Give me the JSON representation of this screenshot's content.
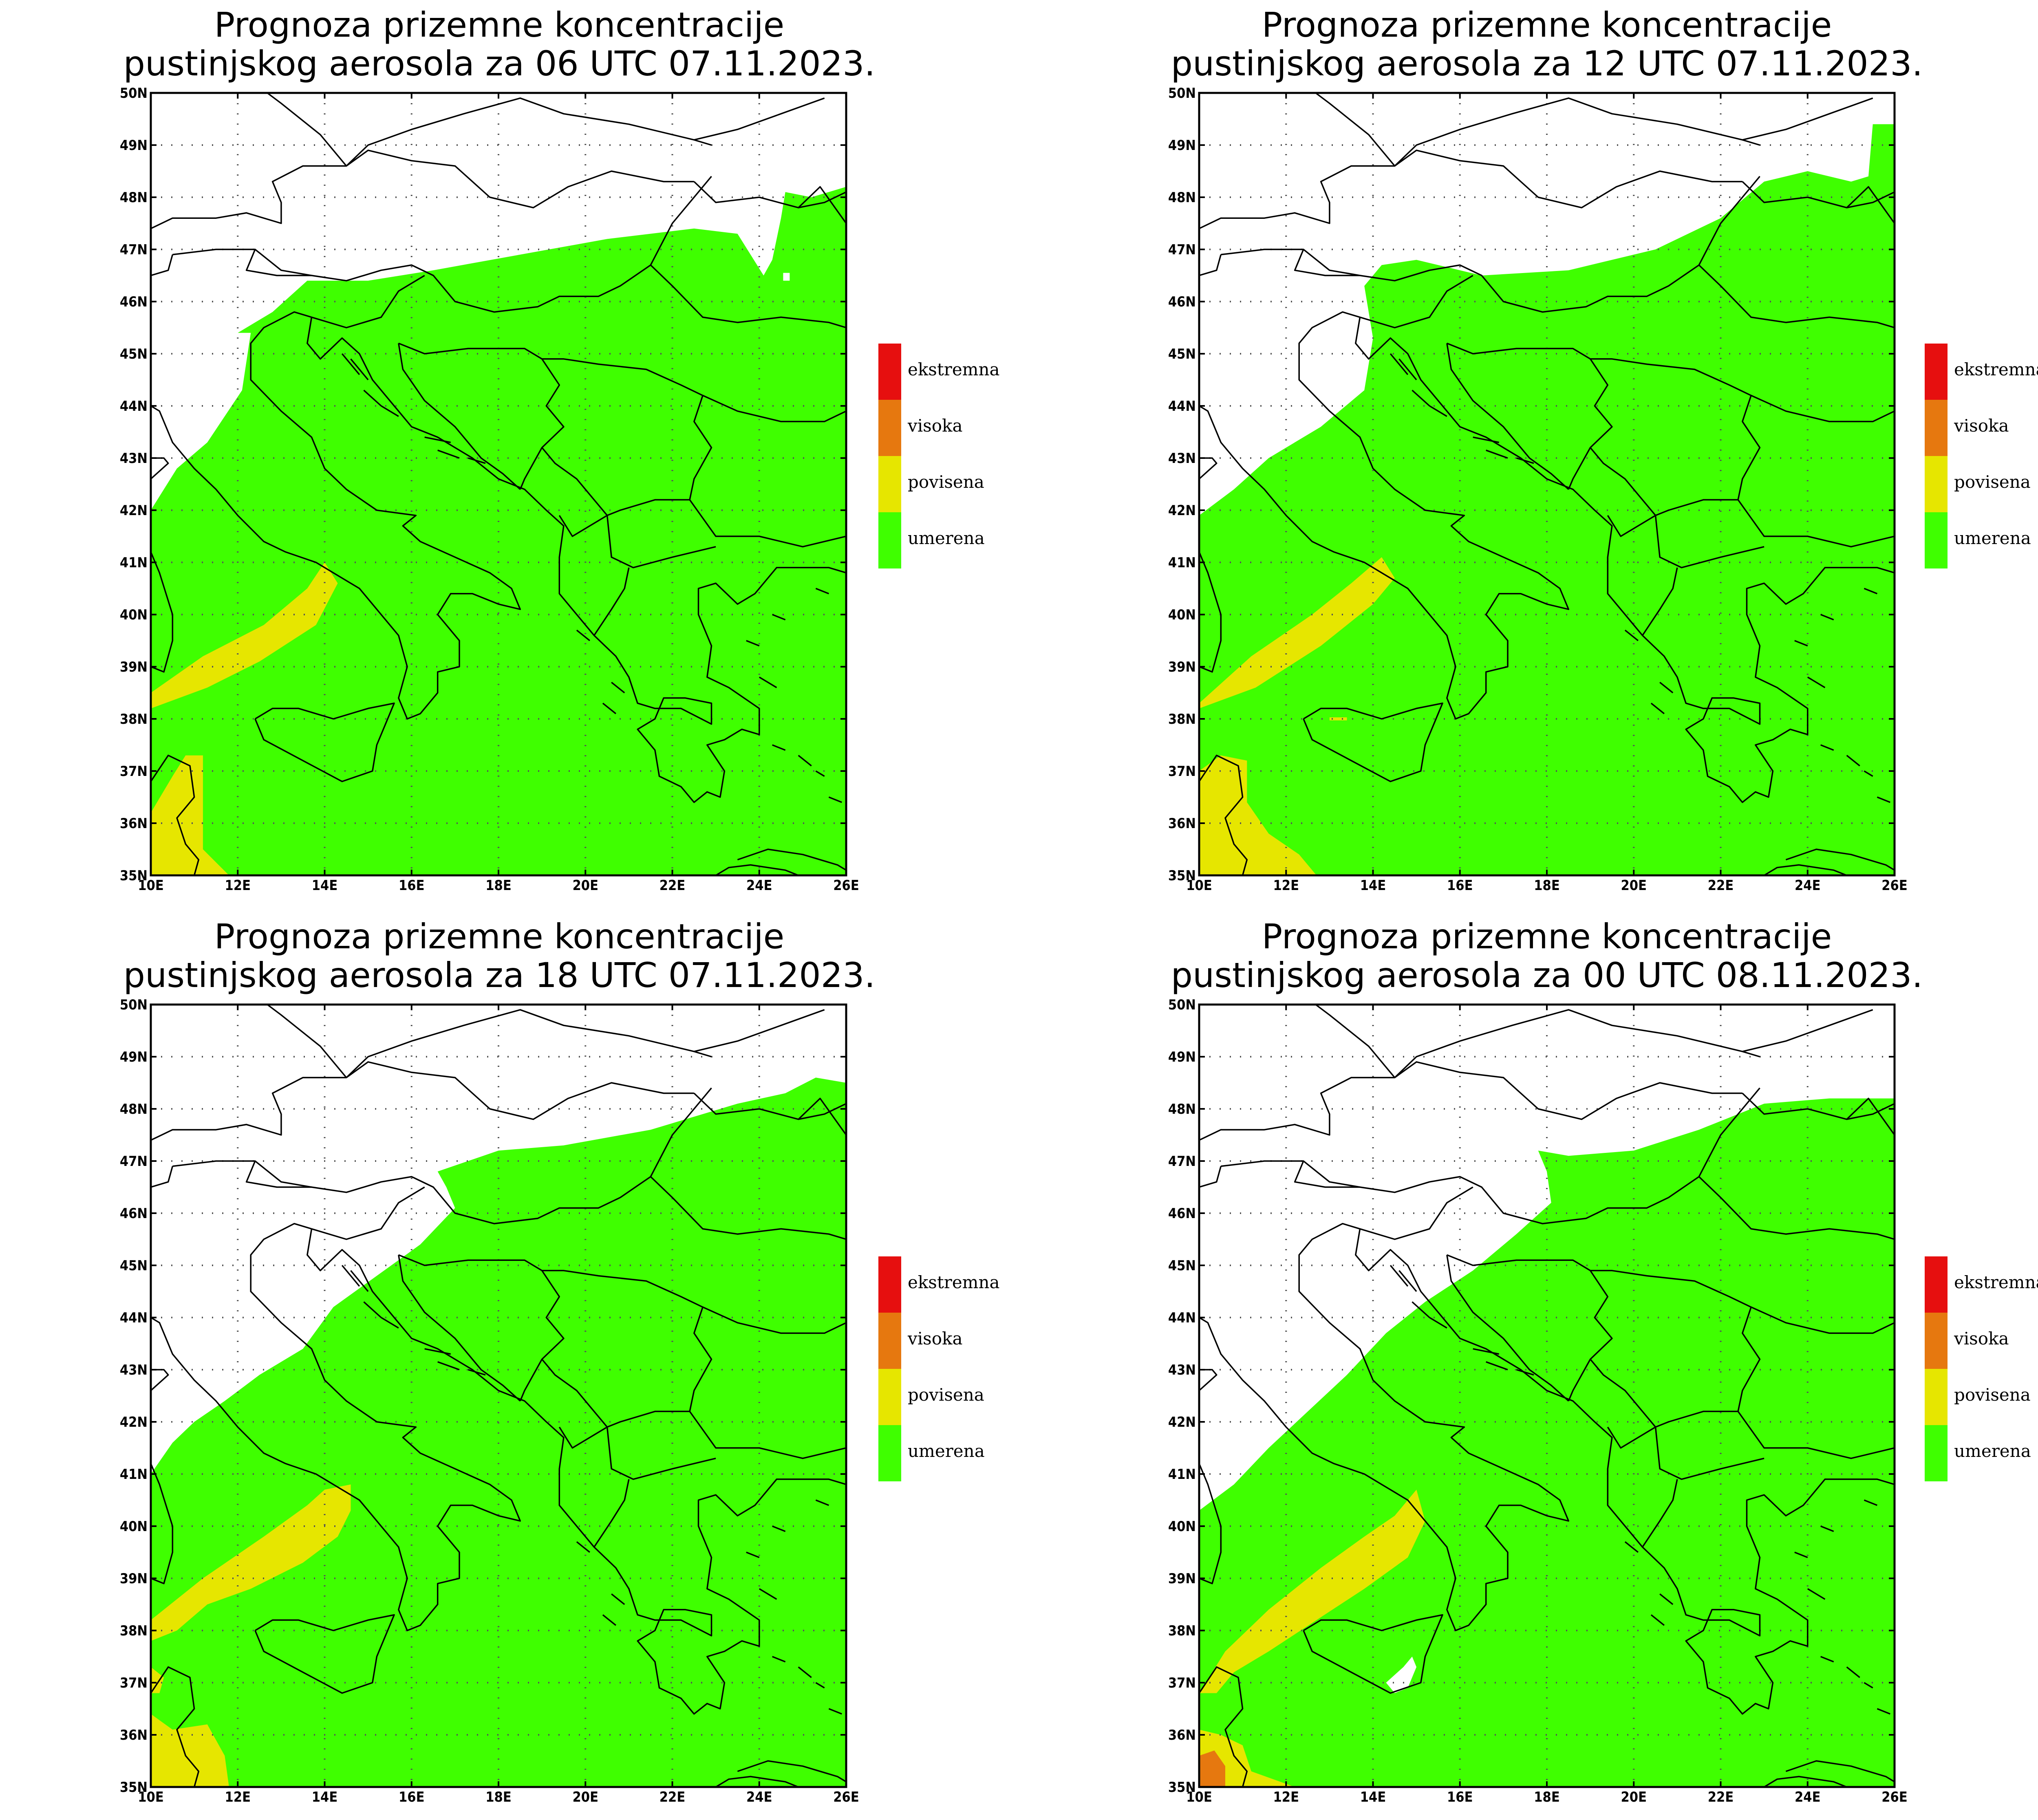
{
  "colors": {
    "umerena": "#3fff00",
    "povisena": "#e6e600",
    "visoka": "#e6780f",
    "ekstremna": "#e60f0f"
  },
  "x_ticks": [
    "10E",
    "12E",
    "14E",
    "16E",
    "18E",
    "20E",
    "22E",
    "24E",
    "26E"
  ],
  "y_ticks": [
    "50N",
    "49N",
    "48N",
    "47N",
    "46N",
    "45N",
    "44N",
    "43N",
    "42N",
    "41N",
    "40N",
    "39N",
    "38N",
    "37N",
    "36N",
    "35N"
  ],
  "legend": [
    {
      "label": "ekstremna",
      "color": "#e60f0f"
    },
    {
      "label": "visoka",
      "color": "#e6780f"
    },
    {
      "label": "povisena",
      "color": "#e6e600"
    },
    {
      "label": "umerena",
      "color": "#3fff00"
    }
  ],
  "panels": [
    {
      "title1": "Prognoza prizemne koncentracije",
      "title2": "pustinjskog aerosola za 06 UTC 07.11.2023."
    },
    {
      "title1": "Prognoza prizemne koncentracije",
      "title2": "pustinjskog aerosola za 12 UTC 07.11.2023."
    },
    {
      "title1": "Prognoza prizemne koncentracije",
      "title2": "pustinjskog aerosola za 18 UTC 07.11.2023."
    },
    {
      "title1": "Prognoza prizemne koncentracije",
      "title2": "pustinjskog aerosola za 00 UTC 08.11.2023."
    }
  ]
}
